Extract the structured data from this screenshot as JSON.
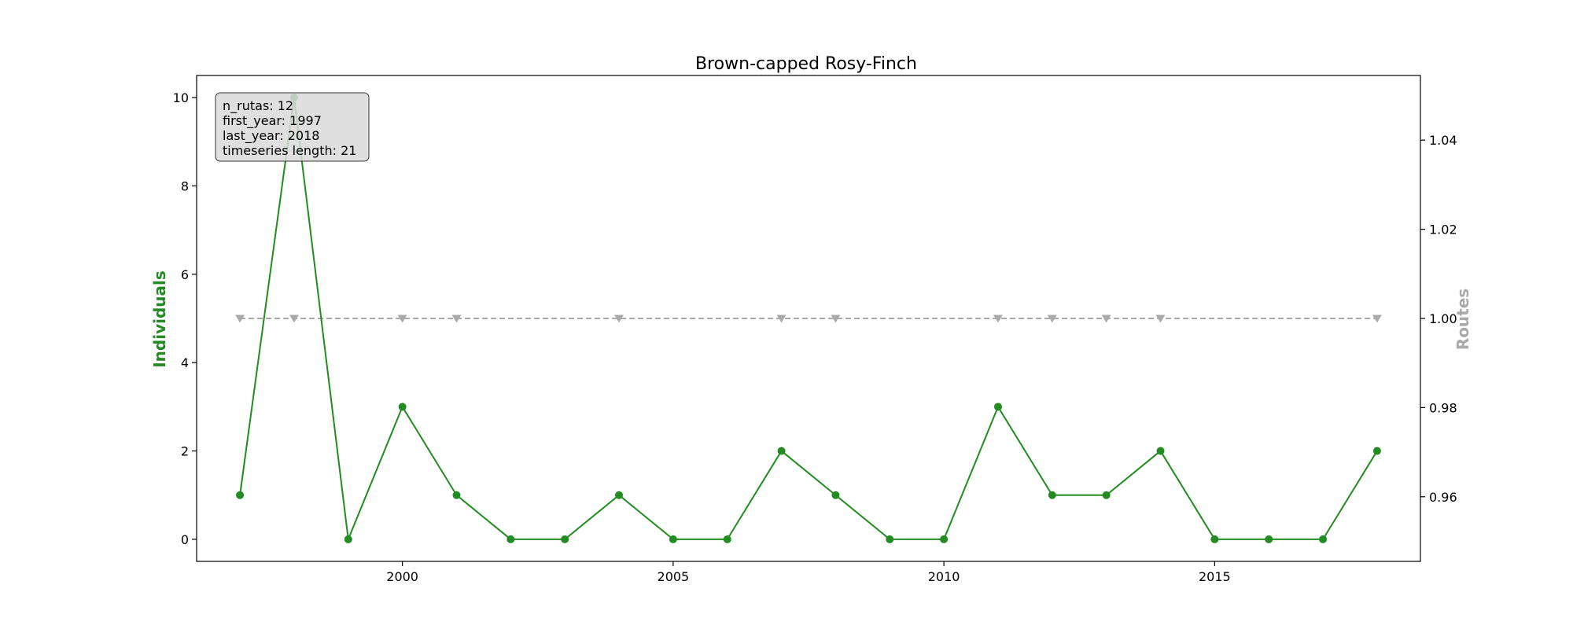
{
  "chart_data": {
    "type": "line",
    "title": "Brown-capped Rosy-Finch",
    "xlabel": "",
    "ylabel_left": "Individuals",
    "ylabel_right": "Routes",
    "xlim": [
      1996.2,
      2018.8
    ],
    "ylim_left": [
      -0.5,
      10.5
    ],
    "ylim_right": [
      0.9455,
      1.0545
    ],
    "x_ticks": [
      2000,
      2005,
      2010,
      2015
    ],
    "y_ticks_left": [
      0,
      2,
      4,
      6,
      8,
      10
    ],
    "y_ticks_right": [
      0.96,
      0.98,
      1.0,
      1.02,
      1.04
    ],
    "y_tick_labels_right": [
      "0.96",
      "0.98",
      "1.00",
      "1.02",
      "1.04"
    ],
    "grid": false,
    "series": [
      {
        "name": "Individuals",
        "axis": "left",
        "color": "#228b22",
        "marker": "circle",
        "linestyle": "solid",
        "x": [
          1997,
          1998,
          1999,
          2000,
          2001,
          2002,
          2003,
          2004,
          2005,
          2006,
          2007,
          2008,
          2009,
          2010,
          2011,
          2012,
          2013,
          2014,
          2015,
          2016,
          2017,
          2018
        ],
        "values": [
          1,
          10,
          0,
          3,
          1,
          0,
          0,
          1,
          0,
          0,
          2,
          1,
          0,
          0,
          3,
          1,
          1,
          2,
          0,
          0,
          0,
          2
        ]
      },
      {
        "name": "Routes",
        "axis": "right",
        "color": "#a9a9a9",
        "marker": "triangle-down",
        "linestyle": "dashed",
        "x": [
          1997,
          1998,
          2000,
          2001,
          2004,
          2007,
          2008,
          2011,
          2012,
          2013,
          2014,
          2018
        ],
        "values": [
          1,
          1,
          1,
          1,
          1,
          1,
          1,
          1,
          1,
          1,
          1,
          1
        ]
      }
    ],
    "info_box": {
      "location": "top-left",
      "lines": [
        "n_rutas: 12",
        "first_year: 1997",
        "last_year: 2018",
        "timeseries length: 21"
      ]
    }
  }
}
